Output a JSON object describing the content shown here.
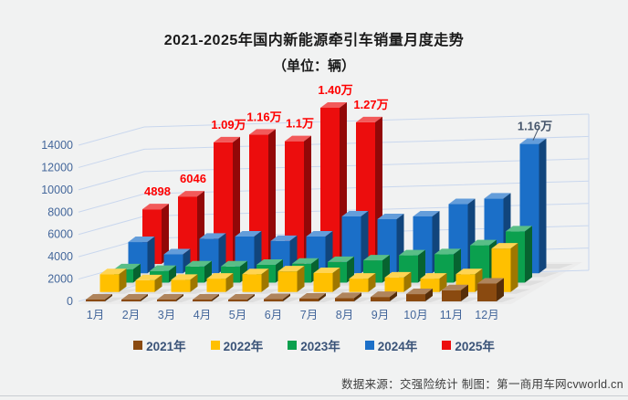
{
  "title": {
    "line1": "2021-2025年国内新能源牵引车销量月度走势",
    "line2": "（单位：辆）"
  },
  "source_note": "数据来源：交强险统计 制图：第一商用车网cvworld.cn",
  "colors": {
    "background": "#f1f2f2",
    "gridline": "#c9d7ee",
    "axis_label": "#44679b",
    "floor": "#ececec",
    "floor_tile": "#d4d4d4",
    "red_data_label": "#fe0000",
    "blue_data_label": "#44546a",
    "legend_text": "#3a5378"
  },
  "chart_data": {
    "type": "bar",
    "style": "3d-column",
    "title": "2021-2025年国内新能源牵引车销量月度走势（单位：辆）",
    "xlabel": "",
    "ylabel": "",
    "ylim": [
      0,
      14000
    ],
    "y_step": 2000,
    "grid": true,
    "legend_position": "bottom",
    "categories": [
      "1月",
      "2月",
      "3月",
      "4月",
      "5月",
      "6月",
      "7月",
      "8月",
      "9月",
      "10月",
      "11月",
      "12月"
    ],
    "y_ticks": [
      "0",
      "2000",
      "4000",
      "6000",
      "8000",
      "10000",
      "12000",
      "14000"
    ],
    "series": [
      {
        "name": "2021年",
        "color": "#8a4a10",
        "values": [
          60,
          30,
          80,
          100,
          150,
          200,
          250,
          300,
          400,
          650,
          1000,
          1600
        ],
        "labels": [
          null,
          null,
          null,
          null,
          null,
          null,
          null,
          null,
          null,
          null,
          null,
          null
        ],
        "label_color": null,
        "label_leader": false
      },
      {
        "name": "2022年",
        "color": "#ffc000",
        "values": [
          1600,
          1050,
          1100,
          1200,
          1600,
          1850,
          1700,
          1200,
          1300,
          1200,
          1600,
          3900
        ],
        "labels": [
          null,
          null,
          null,
          null,
          null,
          null,
          null,
          null,
          null,
          null,
          null,
          null
        ],
        "label_color": null,
        "label_leader": false
      },
      {
        "name": "2023年",
        "color": "#0ba04e",
        "values": [
          1200,
          1050,
          1450,
          1450,
          1600,
          1700,
          1850,
          2000,
          2450,
          2550,
          3350,
          4600
        ],
        "labels": [
          null,
          null,
          null,
          null,
          null,
          null,
          null,
          null,
          null,
          null,
          null,
          null
        ],
        "label_color": null,
        "label_leader": false
      },
      {
        "name": "2024年",
        "color": "#1b6fc8",
        "values": [
          2800,
          1700,
          3100,
          3300,
          2900,
          3300,
          5100,
          4850,
          5100,
          6200,
          6700,
          11600
        ],
        "labels": [
          null,
          null,
          null,
          null,
          null,
          null,
          null,
          null,
          null,
          null,
          null,
          "1.16万"
        ],
        "label_color": "#44546a",
        "label_leader": true
      },
      {
        "name": "2025年",
        "color": "#ec0d0d",
        "values": [
          4898,
          6046,
          10900,
          11600,
          11000,
          14000,
          12700,
          null,
          null,
          null,
          null,
          null
        ],
        "labels": [
          "4898",
          "6046",
          "1.09万",
          "1.16万",
          "1.1万",
          "1.40万",
          "1.27万",
          null,
          null,
          null,
          null,
          null
        ],
        "label_color": "#fe0000",
        "label_leader": false
      }
    ]
  }
}
